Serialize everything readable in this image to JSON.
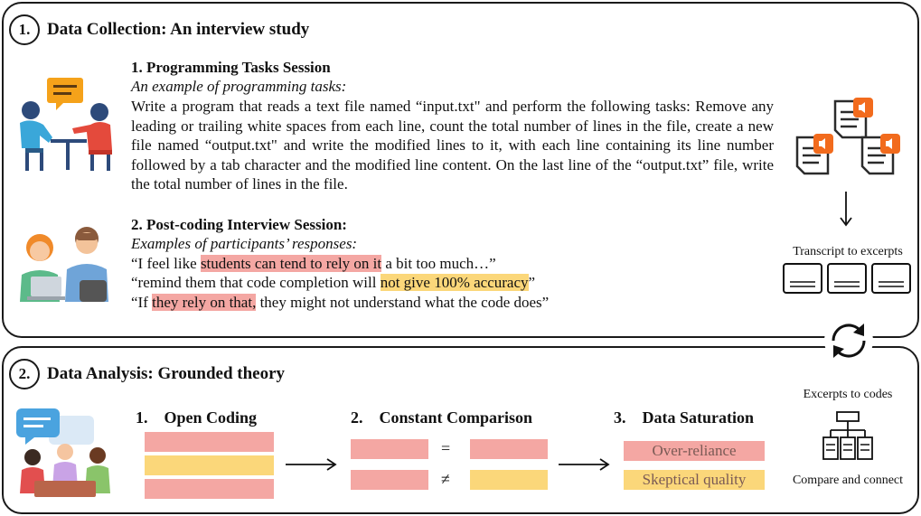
{
  "section1": {
    "number": "1.",
    "title": "Data Collection: An interview study",
    "tasks": {
      "heading": "1. Programming Tasks Session",
      "subheading": "An example of programming tasks:",
      "body": "Write a program that reads a text file named “input.txt\" and perform the following tasks: Remove any leading or trailing white spaces from each line, count the total number of lines in the file, create a new file named “output.txt\" and write the modified lines to it, with each line containing its line number followed by a tab character and the modified line content. On the last line of the “output.txt” file, write the total number of lines in the file."
    },
    "interview": {
      "heading": "2. Post-coding Interview Session:",
      "subheading": "Examples of participants’ responses:",
      "quote1": {
        "pre": "“I feel like ",
        "highlight": "students can tend to rely on it",
        "post": " a bit too much…”"
      },
      "quote2": {
        "pre": "“remind them that code completion will ",
        "highlight": "not give 100% accuracy",
        "post": "”"
      },
      "quote3": {
        "pre": "“If ",
        "highlight": "they rely on that,",
        "post": " they might not understand what the code does”"
      }
    },
    "transcript_label": "Transcript to excerpts"
  },
  "section2": {
    "number": "2.",
    "title": "Data Analysis: Grounded theory",
    "steps": [
      {
        "label": "1.    Open Coding"
      },
      {
        "label": "2.    Constant Comparison"
      },
      {
        "label": "3.    Data Saturation"
      }
    ],
    "equal_sign": "=",
    "notequal_sign": "≠",
    "saturation_labels": [
      "Over-reliance",
      "Skeptical quality"
    ],
    "excerpts_label": "Excerpts to codes",
    "compare_label": "Compare and connect"
  },
  "colors": {
    "red": "#f4a7a3",
    "yellow": "#fbd77a",
    "orange": "#f26b1d"
  }
}
